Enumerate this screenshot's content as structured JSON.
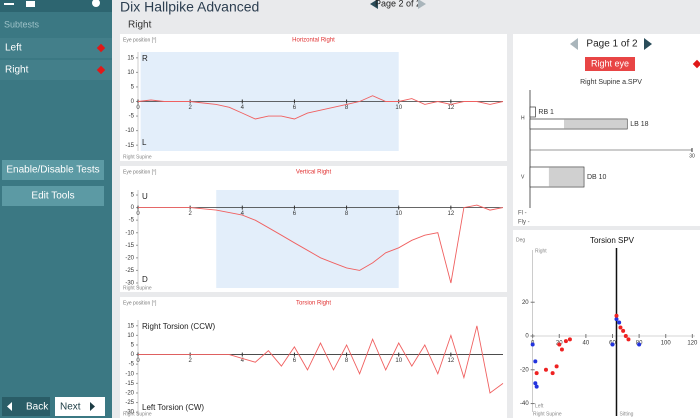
{
  "sidebar": {
    "heading": "Subtests",
    "items": [
      "Left",
      "Right"
    ],
    "buttons": [
      "Enable/Disable Tests",
      "Edit Tools"
    ],
    "back": "Back",
    "next": "Next"
  },
  "header": {
    "title": "Dix Hallpike Advanced",
    "subtitle": "Right",
    "page": "Page 2 of 2"
  },
  "right_panel": {
    "page": "Page 1 of 2",
    "eye": "Right eye"
  },
  "chart_data": [
    {
      "type": "line",
      "title": "Horizontal Right",
      "y_axis_label": "Eye position [°]",
      "top_label": "R",
      "bottom_label": "L",
      "position_label": "Right Supine",
      "x": [
        0,
        0.5,
        1,
        1.5,
        2,
        2.5,
        3,
        3.5,
        4,
        4.5,
        5,
        5.5,
        6,
        6.5,
        7,
        7.5,
        8,
        8.5,
        9,
        9.5,
        10,
        10.5,
        11,
        11.5,
        12,
        12.5,
        13,
        13.5,
        14
      ],
      "series": [
        {
          "color": "#f06060",
          "values": [
            0,
            0.5,
            0,
            0,
            0,
            -0.5,
            -1,
            -2,
            -4,
            -6,
            -5,
            -5,
            -6,
            -4,
            -3,
            -2,
            -1,
            0,
            2,
            0,
            0,
            1,
            -1,
            0,
            -1,
            0,
            0,
            -1,
            0
          ]
        }
      ],
      "highlight_x": [
        0.1,
        10
      ],
      "xlim": [
        0,
        14
      ],
      "xticks": [
        0,
        2,
        4,
        6,
        8,
        10,
        12
      ],
      "ylim": [
        -17,
        17
      ],
      "yticks": [
        15,
        10,
        5,
        0,
        -5,
        -10,
        -15
      ]
    },
    {
      "type": "line",
      "title": "Vertical Right",
      "y_axis_label": "Eye position [°]",
      "top_label": "U",
      "bottom_label": "D",
      "position_label": "Right Supine",
      "x": [
        0,
        0.5,
        1,
        1.5,
        2,
        2.5,
        3,
        3.5,
        4,
        4.5,
        5,
        5.5,
        6,
        6.5,
        7,
        7.5,
        8,
        8.5,
        9,
        9.5,
        10,
        10.5,
        11,
        11.5,
        12,
        12.5,
        13,
        13.5,
        14
      ],
      "series": [
        {
          "color": "#f06060",
          "values": [
            0,
            0,
            0,
            0,
            0,
            -0.5,
            -1,
            -2,
            -3,
            -5,
            -8,
            -11,
            -14,
            -17,
            -20,
            -22,
            -24,
            -25,
            -22,
            -18,
            -16,
            -13,
            -11,
            -10,
            -30,
            0,
            1,
            -1,
            0
          ]
        }
      ],
      "highlight_x": [
        3,
        10
      ],
      "xlim": [
        0,
        14
      ],
      "xticks": [
        0,
        2,
        4,
        6,
        8,
        10,
        12
      ],
      "ylim": [
        -32,
        7
      ],
      "yticks": [
        5,
        0,
        -5,
        -10,
        -15,
        -20,
        -25,
        -30
      ]
    },
    {
      "type": "line",
      "title": "Torsion Right",
      "y_axis_label": "Eye position [°]",
      "top_label": "Right Torsion (CCW)",
      "bottom_label": "Left Torsion (CW)",
      "position_label": "Right Supine",
      "x": [
        0,
        0.5,
        1,
        1.5,
        2,
        2.5,
        3,
        3.5,
        4,
        4.5,
        5,
        5.5,
        6,
        6.5,
        7,
        7.5,
        8,
        8.5,
        9,
        9.5,
        10,
        10.5,
        11,
        11.5,
        12,
        12.5,
        13,
        13.5,
        14
      ],
      "series": [
        {
          "color": "#f06060",
          "values": [
            0,
            0,
            0,
            0,
            0,
            0,
            0,
            0,
            -2,
            -4,
            2,
            -6,
            4,
            -8,
            6,
            -8,
            5,
            -10,
            8,
            -8,
            6,
            -6,
            5,
            -10,
            10,
            -12,
            15,
            -20,
            -15
          ]
        }
      ],
      "xlim": [
        0,
        14
      ],
      "xticks": [
        0,
        2,
        4,
        6,
        8,
        10,
        12
      ],
      "ylim": [
        -32,
        18
      ],
      "yticks": [
        15,
        10,
        5,
        0,
        -5,
        -10,
        -15,
        -20,
        -25,
        -30
      ]
    },
    {
      "type": "bar",
      "title": "Right Supine a.SPV",
      "categories": [
        "H",
        "V"
      ],
      "bars": [
        {
          "category": "H",
          "label": "RB 1",
          "value": 1
        },
        {
          "category": "H",
          "label": "LB 18",
          "value": 18
        },
        {
          "category": "V",
          "label": "DB 10",
          "value": 10
        }
      ],
      "xlim": [
        0,
        30
      ],
      "xticks": [
        30
      ],
      "notes": [
        "Fl -",
        "Fly -"
      ]
    },
    {
      "type": "scatter",
      "title": "Torsion SPV",
      "y_axis_label": "Deg",
      "top_label": "Right",
      "bottom_label": "Left",
      "position_label": "Right Supine",
      "right_position_label": "Sitting",
      "series": [
        {
          "color": "#2233dd",
          "x": [
            0,
            2,
            2,
            3,
            60,
            63,
            65,
            80
          ],
          "y": [
            -5,
            -15,
            -28,
            -30,
            -5,
            10,
            8,
            -5
          ]
        },
        {
          "color": "#ee2222",
          "x": [
            3,
            10,
            15,
            18,
            20,
            22,
            25,
            28,
            63,
            66,
            68,
            70,
            72
          ],
          "y": [
            -22,
            -20,
            -22,
            -18,
            -5,
            -8,
            -3,
            -2,
            12,
            5,
            3,
            0,
            -2
          ]
        }
      ],
      "divider_x": 63,
      "xlim": [
        -2,
        122
      ],
      "xticks": [
        0,
        20,
        40,
        60,
        80,
        100,
        120
      ],
      "ylim": [
        -45,
        45
      ],
      "yticks": [
        20,
        0,
        -20,
        -40
      ]
    }
  ]
}
